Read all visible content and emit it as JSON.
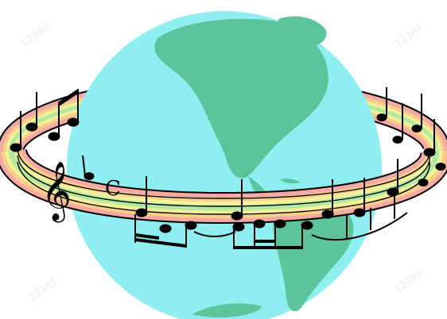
{
  "scene": {
    "subject": "globe-with-musical-staff-ring",
    "colors": {
      "ocean": "#8eeef0",
      "land": "#5cc49a",
      "staff_band_pink": "#f3a9a4",
      "staff_band_orange": "#f8cf88",
      "staff_band_yellow": "#f3f19a",
      "staff_band_green": "#b4eaa0",
      "ink": "#000000"
    },
    "time_signature": "C",
    "clef": "treble-clef",
    "watermark": "123RF"
  }
}
